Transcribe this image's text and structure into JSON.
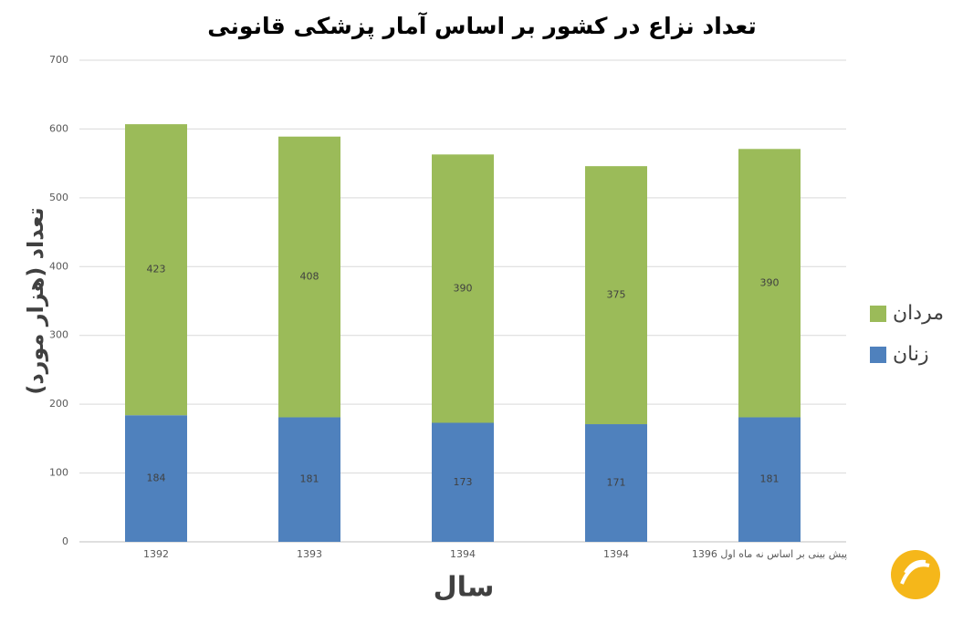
{
  "chart_data": {
    "type": "stacked_bar",
    "title": "تعداد نزاع در کشور بر اساس آمار پزشکی قانونی",
    "y_label": "تعداد (هزار مورد)",
    "x_label": "سال",
    "categories": [
      "1392",
      "1393",
      "1394",
      "1394",
      "پیش بینی بر اساس نه ماه اول 1396"
    ],
    "series": [
      {
        "name": "زنان",
        "color": "#4f81bd",
        "values": [
          184,
          181,
          173,
          171,
          181
        ]
      },
      {
        "name": "مردان",
        "color": "#9bbb59",
        "values": [
          423,
          408,
          390,
          375,
          390
        ]
      }
    ],
    "ylim": [
      0,
      700
    ],
    "yticks": [
      0,
      100,
      200,
      300,
      400,
      500,
      600,
      700
    ],
    "grid": true,
    "legend": "right"
  }
}
